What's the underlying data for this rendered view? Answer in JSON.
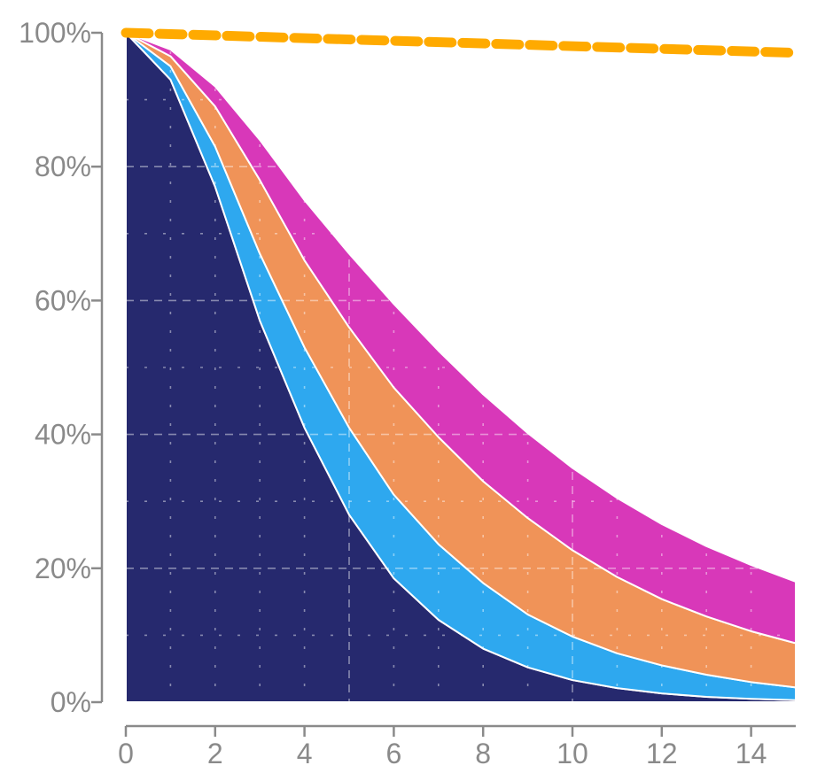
{
  "chart_data": {
    "type": "area",
    "title": "",
    "xlabel": "",
    "ylabel": "",
    "xlim": [
      0,
      15
    ],
    "ylim": [
      0,
      100
    ],
    "x": [
      0,
      1,
      2,
      3,
      4,
      5,
      6,
      7,
      8,
      9,
      10,
      11,
      12,
      13,
      14,
      15
    ],
    "x_ticks": [
      0,
      2,
      4,
      6,
      8,
      10,
      12,
      14
    ],
    "x_tick_labels": [
      "0",
      "2",
      "4",
      "6",
      "8",
      "10",
      "12",
      "14"
    ],
    "y_ticks": [
      0,
      20,
      40,
      60,
      80,
      100
    ],
    "y_tick_labels": [
      "0%",
      "20%",
      "40%",
      "60%",
      "80%",
      "100%"
    ],
    "grid": true,
    "legend": "none",
    "series": [
      {
        "color": "#26296e",
        "values": [
          100,
          93,
          77,
          57,
          41,
          28,
          18.5,
          12.3,
          8,
          5.2,
          3.3,
          2.1,
          1.3,
          0.8,
          0.5,
          0.3
        ]
      },
      {
        "color": "#2ea8ef",
        "values": [
          100,
          95,
          83,
          67,
          53,
          41,
          31,
          23.6,
          17.8,
          13.1,
          9.8,
          7.3,
          5.5,
          4.1,
          3,
          2.2
        ]
      },
      {
        "color": "#f09358",
        "values": [
          100,
          96.5,
          89,
          78,
          66,
          56,
          47,
          39.6,
          33,
          27.5,
          22.7,
          18.7,
          15.4,
          12.8,
          10.6,
          8.8
        ]
      },
      {
        "color": "#d838b9",
        "values": [
          100,
          97.5,
          92,
          84,
          75,
          67,
          59.5,
          52.5,
          46,
          40.2,
          35,
          30.5,
          26.6,
          23.3,
          20.5,
          18
        ]
      }
    ],
    "reference_line": {
      "color": "#ffaa00",
      "style": "dashed",
      "x": [
        0,
        15
      ],
      "values": [
        100,
        97
      ]
    }
  }
}
